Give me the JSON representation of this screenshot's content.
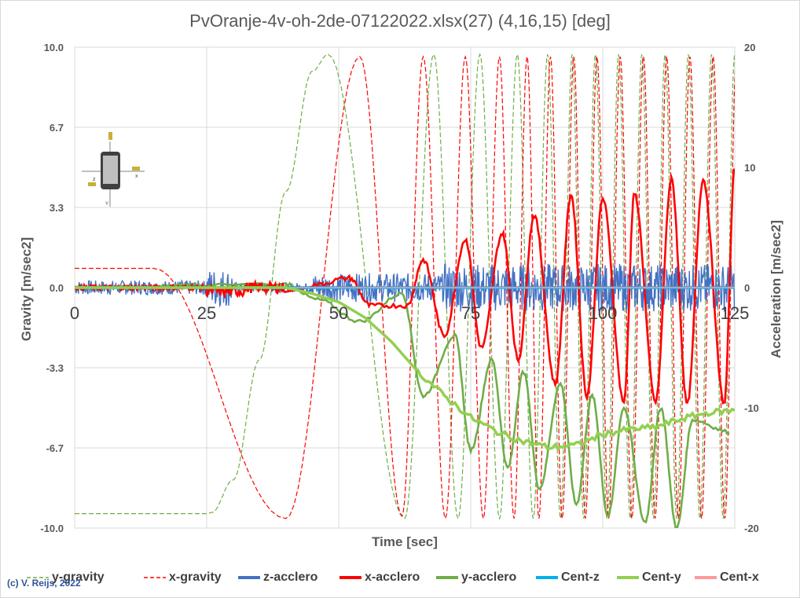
{
  "chart_data": {
    "type": "line",
    "title": "PvOranje-4v-oh-2de-07122022.xlsx(27) (4,16,15) [deg]",
    "xlabel": "Time [sec]",
    "ylabel": "Gravity  [m/sec2]",
    "y2label": "Acceleration [m/sec2]",
    "xlim": [
      0,
      125
    ],
    "ylim": [
      -10,
      10
    ],
    "y2lim": [
      -20,
      20
    ],
    "x_ticks": [
      "0",
      "25",
      "50",
      "75",
      "100",
      "125"
    ],
    "y_ticks": [
      "10.0",
      "6.7",
      "3.3",
      "0.0",
      "-3.3",
      "-6.7",
      "-10.0"
    ],
    "y2_ticks": [
      "20",
      "10",
      "0",
      "-10",
      "-20"
    ],
    "grid": true,
    "legend_position": "bottom",
    "series": [
      {
        "name": "y-gravity",
        "axis": "left",
        "style": "dashed",
        "color": "#70ad47",
        "description": "flat at -9.4 until t=25, rises to +9.7 at t=48, then oscillates between -9.6 and +9.7 with increasing frequency",
        "points": [
          [
            0,
            -9.4
          ],
          [
            25,
            -9.4
          ],
          [
            30,
            -8
          ],
          [
            35,
            -3
          ],
          [
            40,
            4
          ],
          [
            45,
            9
          ],
          [
            48,
            9.7
          ],
          [
            52,
            8
          ],
          [
            57,
            0
          ],
          [
            61,
            -8
          ],
          [
            62.5,
            -9.6
          ],
          [
            64,
            -5
          ],
          [
            66,
            5
          ],
          [
            68,
            9.7
          ]
        ]
      },
      {
        "name": "x-gravity",
        "axis": "left",
        "style": "dashed",
        "color": "#ff0000",
        "description": "flat at 0.8 until t=15, falls to -9.6 at t=40, rises to +9.6 at t=54, then oscillates with increasing frequency",
        "points": [
          [
            0,
            0.8
          ],
          [
            15,
            0.8
          ],
          [
            22,
            0.3
          ],
          [
            27,
            -2
          ],
          [
            32,
            -6
          ],
          [
            37,
            -9.3
          ],
          [
            40,
            -9.6
          ],
          [
            45,
            -6
          ],
          [
            50,
            2
          ],
          [
            54,
            9.6
          ],
          [
            57,
            5
          ],
          [
            62,
            -9.5
          ],
          [
            66,
            9.6
          ]
        ]
      },
      {
        "name": "z-acclero",
        "axis": "right",
        "style": "solid",
        "color": "#4472c4",
        "description": "noise around 0, amplitude ~1 m/s2 rising to ~2 after t=75"
      },
      {
        "name": "x-acclero",
        "axis": "right",
        "style": "solid",
        "color": "#ff0000",
        "description": "oscillation of growing amplitude",
        "peaks": [
          [
            52,
            0.8
          ],
          [
            66,
            2.3
          ],
          [
            74,
            4
          ],
          [
            81,
            4.5
          ],
          [
            87,
            6
          ],
          [
            94,
            7.7
          ],
          [
            100,
            7.4
          ],
          [
            106,
            7.8
          ],
          [
            113,
            9
          ],
          [
            119,
            9
          ],
          [
            125,
            10
          ]
        ],
        "troughs": [
          [
            56,
            -1.5
          ],
          [
            63,
            -1.5
          ],
          [
            70,
            -4
          ],
          [
            77,
            -5
          ],
          [
            84,
            -6
          ],
          [
            91,
            -8
          ],
          [
            97,
            -9
          ],
          [
            104,
            -9.5
          ],
          [
            110,
            -9.5
          ],
          [
            116,
            -9.7
          ],
          [
            123,
            -9.6
          ]
        ]
      },
      {
        "name": "y-acclero",
        "axis": "right",
        "style": "solid",
        "color": "#70ad47",
        "description": "follows cent-y initially then oscillates with growing amplitude around -12",
        "peaks": [
          [
            62,
            -0.5
          ],
          [
            72,
            -4
          ],
          [
            79,
            -6
          ],
          [
            85,
            -7
          ],
          [
            92,
            -8
          ],
          [
            98,
            -9
          ],
          [
            104,
            -10
          ],
          [
            111,
            -10
          ],
          [
            117,
            -11
          ],
          [
            124,
            -12
          ]
        ],
        "troughs": [
          [
            54,
            -2.8
          ],
          [
            66,
            -9
          ],
          [
            75,
            -13.5
          ],
          [
            82,
            -15
          ],
          [
            88,
            -16.7
          ],
          [
            95,
            -18
          ],
          [
            101,
            -19
          ],
          [
            108,
            -19.5
          ],
          [
            114,
            -20
          ],
          [
            121,
            -19.5
          ]
        ]
      },
      {
        "name": "Cent-z",
        "axis": "right",
        "style": "solid",
        "color": "#00b0f0",
        "description": "constant near 0",
        "points": [
          [
            0,
            0
          ],
          [
            125,
            0
          ]
        ]
      },
      {
        "name": "Cent-y",
        "axis": "right",
        "style": "solid",
        "color": "#92d050",
        "points": [
          [
            0,
            0
          ],
          [
            30,
            0
          ],
          [
            40,
            0
          ],
          [
            45,
            -0.5
          ],
          [
            50,
            -1.2
          ],
          [
            55,
            -2.5
          ],
          [
            60,
            -4.5
          ],
          [
            65,
            -7
          ],
          [
            70,
            -9
          ],
          [
            75,
            -10.8
          ],
          [
            80,
            -12
          ],
          [
            85,
            -12.8
          ],
          [
            90,
            -13.3
          ],
          [
            95,
            -13.1
          ],
          [
            100,
            -12.2
          ],
          [
            105,
            -11.8
          ],
          [
            110,
            -11.6
          ],
          [
            115,
            -10.9
          ],
          [
            120,
            -10.4
          ],
          [
            125,
            -10.2
          ]
        ]
      },
      {
        "name": "Cent-x",
        "axis": "right",
        "style": "solid",
        "color": "#ff9999",
        "description": "constant near 0",
        "points": [
          [
            0,
            0
          ],
          [
            125,
            0
          ]
        ]
      }
    ],
    "annotations": [
      "(c) V. Reijs, 2022"
    ]
  }
}
